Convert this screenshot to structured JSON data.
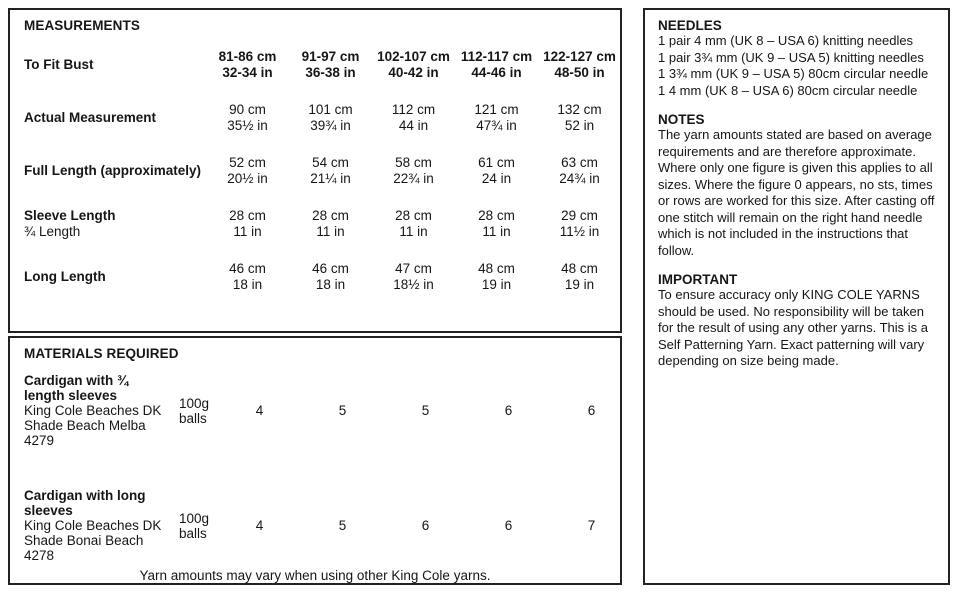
{
  "measurements": {
    "title": "MEASUREMENTS",
    "rows": [
      {
        "label": "To Fit Bust",
        "sub": "",
        "values": [
          {
            "cm": "81-86 cm",
            "in": "32-34 in"
          },
          {
            "cm": "91-97 cm",
            "in": "36-38 in"
          },
          {
            "cm": "102-107 cm",
            "in": "40-42 in"
          },
          {
            "cm": "112-117 cm",
            "in": "44-46 in"
          },
          {
            "cm": "122-127 cm",
            "in": "48-50 in"
          }
        ]
      },
      {
        "label": "Actual Measurement",
        "sub": "",
        "values": [
          {
            "cm": "90 cm",
            "in": "35½ in"
          },
          {
            "cm": "101 cm",
            "in": "39¾ in"
          },
          {
            "cm": "112 cm",
            "in": "44 in"
          },
          {
            "cm": "121 cm",
            "in": "47¾ in"
          },
          {
            "cm": "132 cm",
            "in": "52 in"
          }
        ]
      },
      {
        "label": "Full Length (approximately)",
        "sub": "",
        "values": [
          {
            "cm": "52 cm",
            "in": "20½ in"
          },
          {
            "cm": "54 cm",
            "in": "21¼ in"
          },
          {
            "cm": "58 cm",
            "in": "22¾ in"
          },
          {
            "cm": "61 cm",
            "in": "24 in"
          },
          {
            "cm": "63 cm",
            "in": "24¾ in"
          }
        ]
      },
      {
        "label": "Sleeve Length",
        "sub": "¾ Length",
        "values": [
          {
            "cm": "28 cm",
            "in": "11 in"
          },
          {
            "cm": "28 cm",
            "in": "11 in"
          },
          {
            "cm": "28 cm",
            "in": "11 in"
          },
          {
            "cm": "28 cm",
            "in": "11 in"
          },
          {
            "cm": "29 cm",
            "in": "11½ in"
          }
        ]
      },
      {
        "label": "Long Length",
        "sub": "",
        "values": [
          {
            "cm": "46 cm",
            "in": "18 in"
          },
          {
            "cm": "46 cm",
            "in": "18 in"
          },
          {
            "cm": "47 cm",
            "in": "18½ in"
          },
          {
            "cm": "48 cm",
            "in": "19 in"
          },
          {
            "cm": "48 cm",
            "in": "19 in"
          }
        ]
      }
    ]
  },
  "materials": {
    "title": "MATERIALS REQUIRED",
    "items": [
      {
        "name_line1": "Cardigan with ¾",
        "name_line2": "length sleeves",
        "desc_line1": "King Cole Beaches DK",
        "desc_line2": "Shade Beach Melba",
        "desc_line3": "4279",
        "unit_line1": "100g",
        "unit_line2": "balls",
        "counts": [
          "4",
          "5",
          "5",
          "6",
          "6"
        ]
      },
      {
        "name_line1": "Cardigan with long",
        "name_line2": "sleeves",
        "desc_line1": "King Cole Beaches DK",
        "desc_line2": "Shade Bonai Beach",
        "desc_line3": "4278",
        "unit_line1": "100g",
        "unit_line2": "balls",
        "counts": [
          "4",
          "5",
          "6",
          "6",
          "7"
        ]
      }
    ],
    "footnote": "Yarn amounts may vary when using other King Cole yarns."
  },
  "needles": {
    "title": "NEEDLES",
    "items": [
      "1 pair 4 mm (UK 8 – USA 6) knitting needles",
      "1 pair 3¾ mm (UK 9 – USA 5) knitting needles",
      "1 3¾ mm (UK 9 – USA 5) 80cm circular needle",
      "1 4 mm (UK 8 – USA 6) 80cm circular needle"
    ]
  },
  "notes": {
    "title": "NOTES",
    "body": "The yarn amounts stated are based on average requirements and are therefore approximate. Where only one figure is given this applies to all sizes. Where the figure 0 appears, no sts, times or rows are worked for this size. After casting off one stitch will remain on the right hand needle which is not included in the instructions that follow."
  },
  "important": {
    "title": "IMPORTANT",
    "body": "To ensure accuracy only KING COLE YARNS should be used. No responsibility will be taken for the result of using any other yarns. This is a Self Patterning Yarn. Exact patterning will vary depending on size being made."
  },
  "colors": {
    "border": "#222222",
    "text": "#161616",
    "background": "#ffffff"
  }
}
